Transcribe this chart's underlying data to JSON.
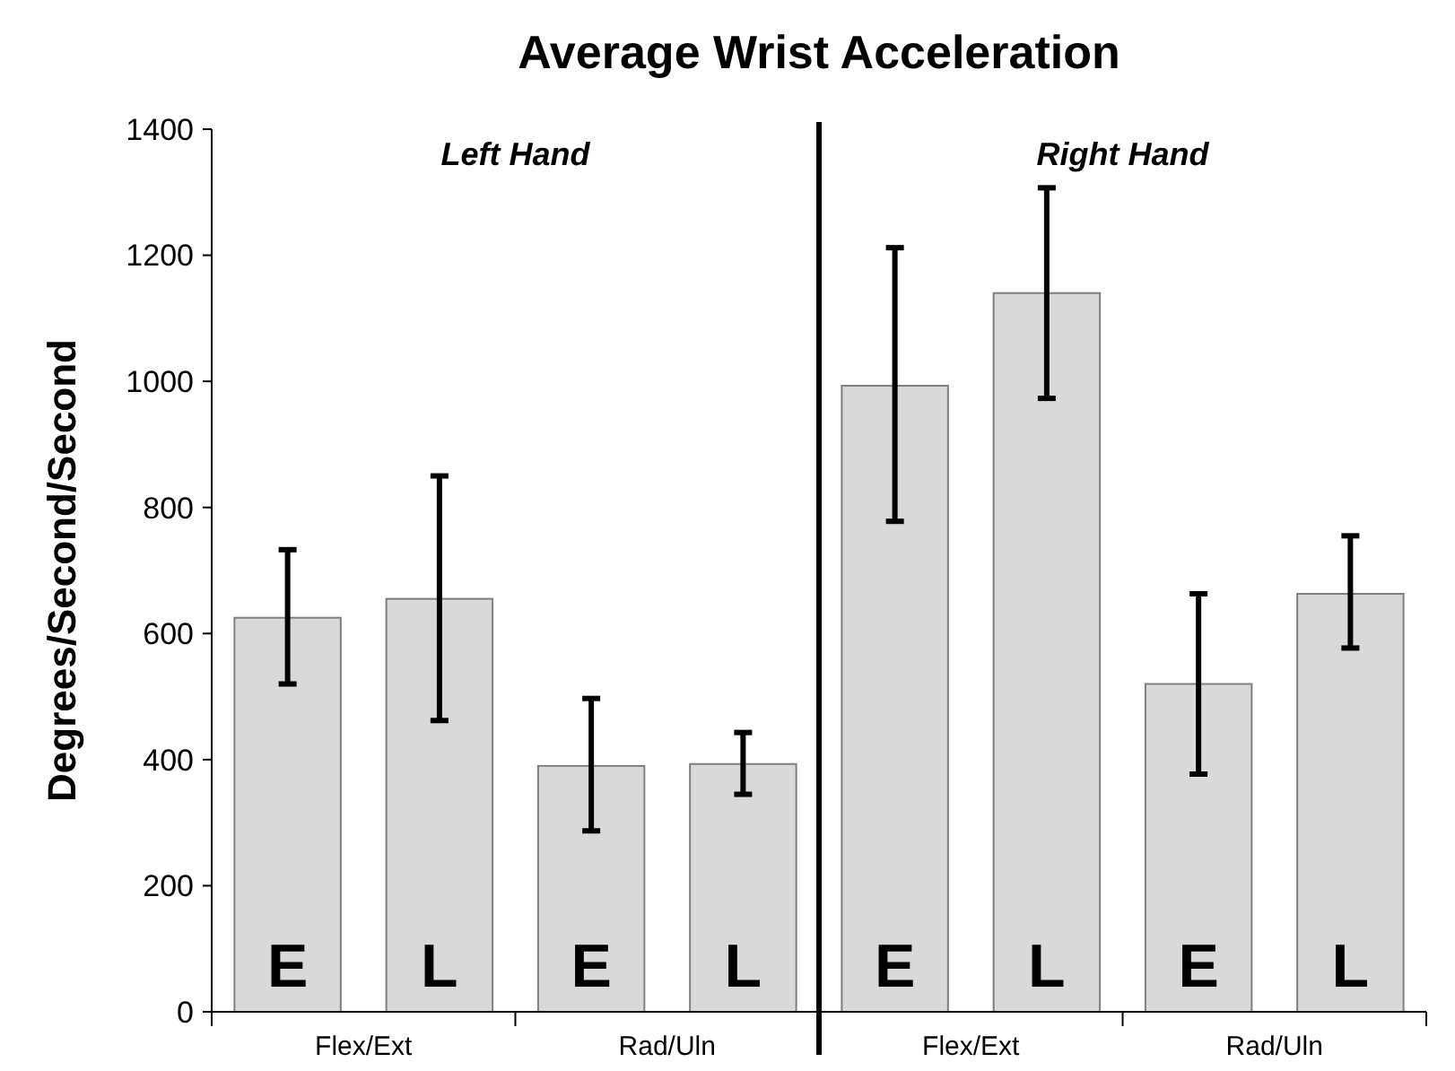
{
  "chart_data": {
    "type": "bar",
    "title": "Average Wrist Acceleration",
    "ylabel": "Degrees/Second/Second",
    "categories": [
      "E",
      "L",
      "E",
      "L",
      "E",
      "L",
      "E",
      "L"
    ],
    "values": [
      625,
      655,
      390,
      393,
      993,
      1140,
      520,
      663
    ],
    "errors": [
      [
        520,
        733
      ],
      [
        462,
        850
      ],
      [
        287,
        497
      ],
      [
        345,
        443
      ],
      [
        778,
        1212
      ],
      [
        973,
        1307
      ],
      [
        377,
        663
      ],
      [
        577,
        755
      ]
    ],
    "color": "#d9d9d9",
    "ylim": [
      0,
      1400
    ],
    "yticks": [
      0,
      200,
      400,
      600,
      800,
      1000,
      1200,
      1400
    ],
    "annotations": [
      "Left Hand",
      "Right Hand",
      "Flex/Ext",
      "Rad/Uln",
      "Flex/Ext",
      "Rad/Uln"
    ],
    "grid": false
  }
}
